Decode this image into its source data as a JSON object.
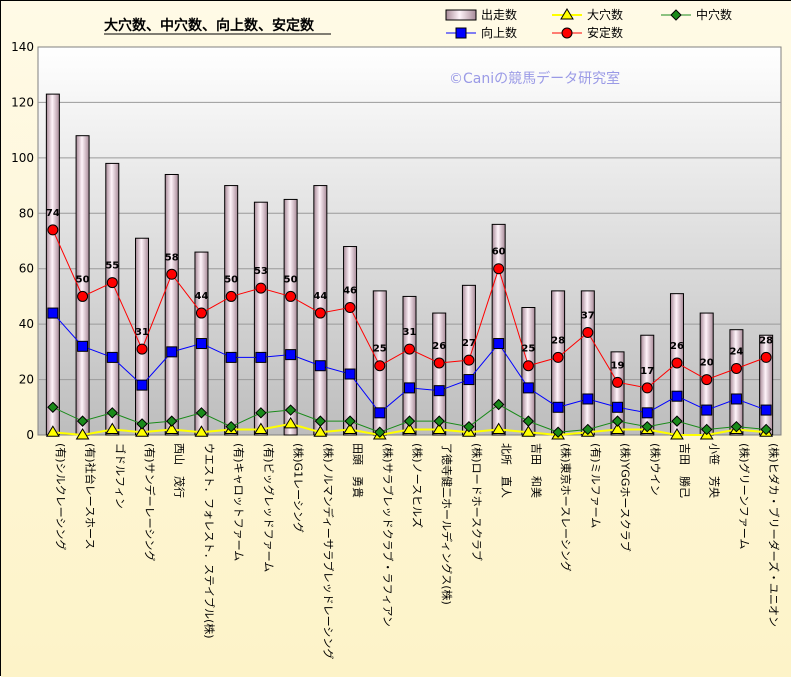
{
  "chart_data": {
    "type": "bar",
    "title": "大穴数、中穴数、向上数、安定数",
    "watermark": "©Caniの競馬データ研究室",
    "ylim": [
      0,
      140
    ],
    "yticks": [
      "0",
      "20",
      "40",
      "60",
      "80",
      "100",
      "120",
      "140"
    ],
    "grid": true,
    "legend_position": "top-right",
    "categories": [
      "(有)シルクレーシング",
      "(有)社台レースホース",
      "ゴドルフィン",
      "(有)サンデーレーシング",
      "西山　茂行",
      "ウエスト．フォレスト．ステイブル(株)",
      "(有)キャロットファーム",
      "(有)ビッグレッドファーム",
      "(株)G1レーシング",
      "(株)ノルマンディーサラブレッドレーシング",
      "田頭　勇貴",
      "(株)サラブレッドクラブ・ラフィアン",
      "(株)ノースヒルズ",
      "了徳寺健二ホールディングス(株)",
      "(株)ロードホースクラブ",
      "北所　直人",
      "吉田　和美",
      "(株)東京ホースレーシング",
      "(有)ミルファーム",
      "(株)YGGホースクラブ",
      "(株)ウイン",
      "吉田　勝己",
      "小笹　芳央",
      "(株)グリーンファーム",
      "(株)ヒダカ・ブリーダーズ・ユニオン"
    ],
    "series": [
      {
        "name": "出走数",
        "type": "bar",
        "color": "#f2dfe8",
        "values": [
          123,
          108,
          98,
          71,
          94,
          66,
          90,
          84,
          85,
          90,
          68,
          52,
          50,
          44,
          54,
          76,
          46,
          52,
          52,
          30,
          36,
          51,
          44,
          38,
          36
        ]
      },
      {
        "name": "大穴数",
        "type": "line",
        "color": "#ffff00",
        "marker": "triangle",
        "values": [
          1,
          0,
          2,
          1,
          2,
          1,
          2,
          2,
          4,
          1,
          2,
          0,
          2,
          2,
          1,
          2,
          1,
          0,
          1,
          2,
          2,
          0,
          0,
          2,
          1
        ]
      },
      {
        "name": "中穴数",
        "type": "line",
        "color": "#1a8a1a",
        "marker": "diamond",
        "values": [
          10,
          5,
          8,
          4,
          5,
          8,
          3,
          8,
          9,
          5,
          5,
          1,
          5,
          5,
          3,
          11,
          5,
          1,
          2,
          5,
          3,
          5,
          2,
          3,
          2
        ]
      },
      {
        "name": "向上数",
        "type": "line",
        "color": "#0000ff",
        "marker": "square",
        "values": [
          44,
          32,
          28,
          18,
          30,
          33,
          28,
          28,
          29,
          25,
          22,
          8,
          17,
          16,
          20,
          33,
          17,
          10,
          13,
          10,
          8,
          14,
          9,
          13,
          9
        ]
      },
      {
        "name": "安定数",
        "type": "line",
        "color": "#ff0000",
        "marker": "circle",
        "values": [
          74,
          50,
          55,
          31,
          58,
          44,
          50,
          53,
          50,
          44,
          46,
          25,
          31,
          26,
          27,
          60,
          25,
          28,
          37,
          19,
          17,
          26,
          20,
          24,
          28
        ]
      }
    ]
  }
}
